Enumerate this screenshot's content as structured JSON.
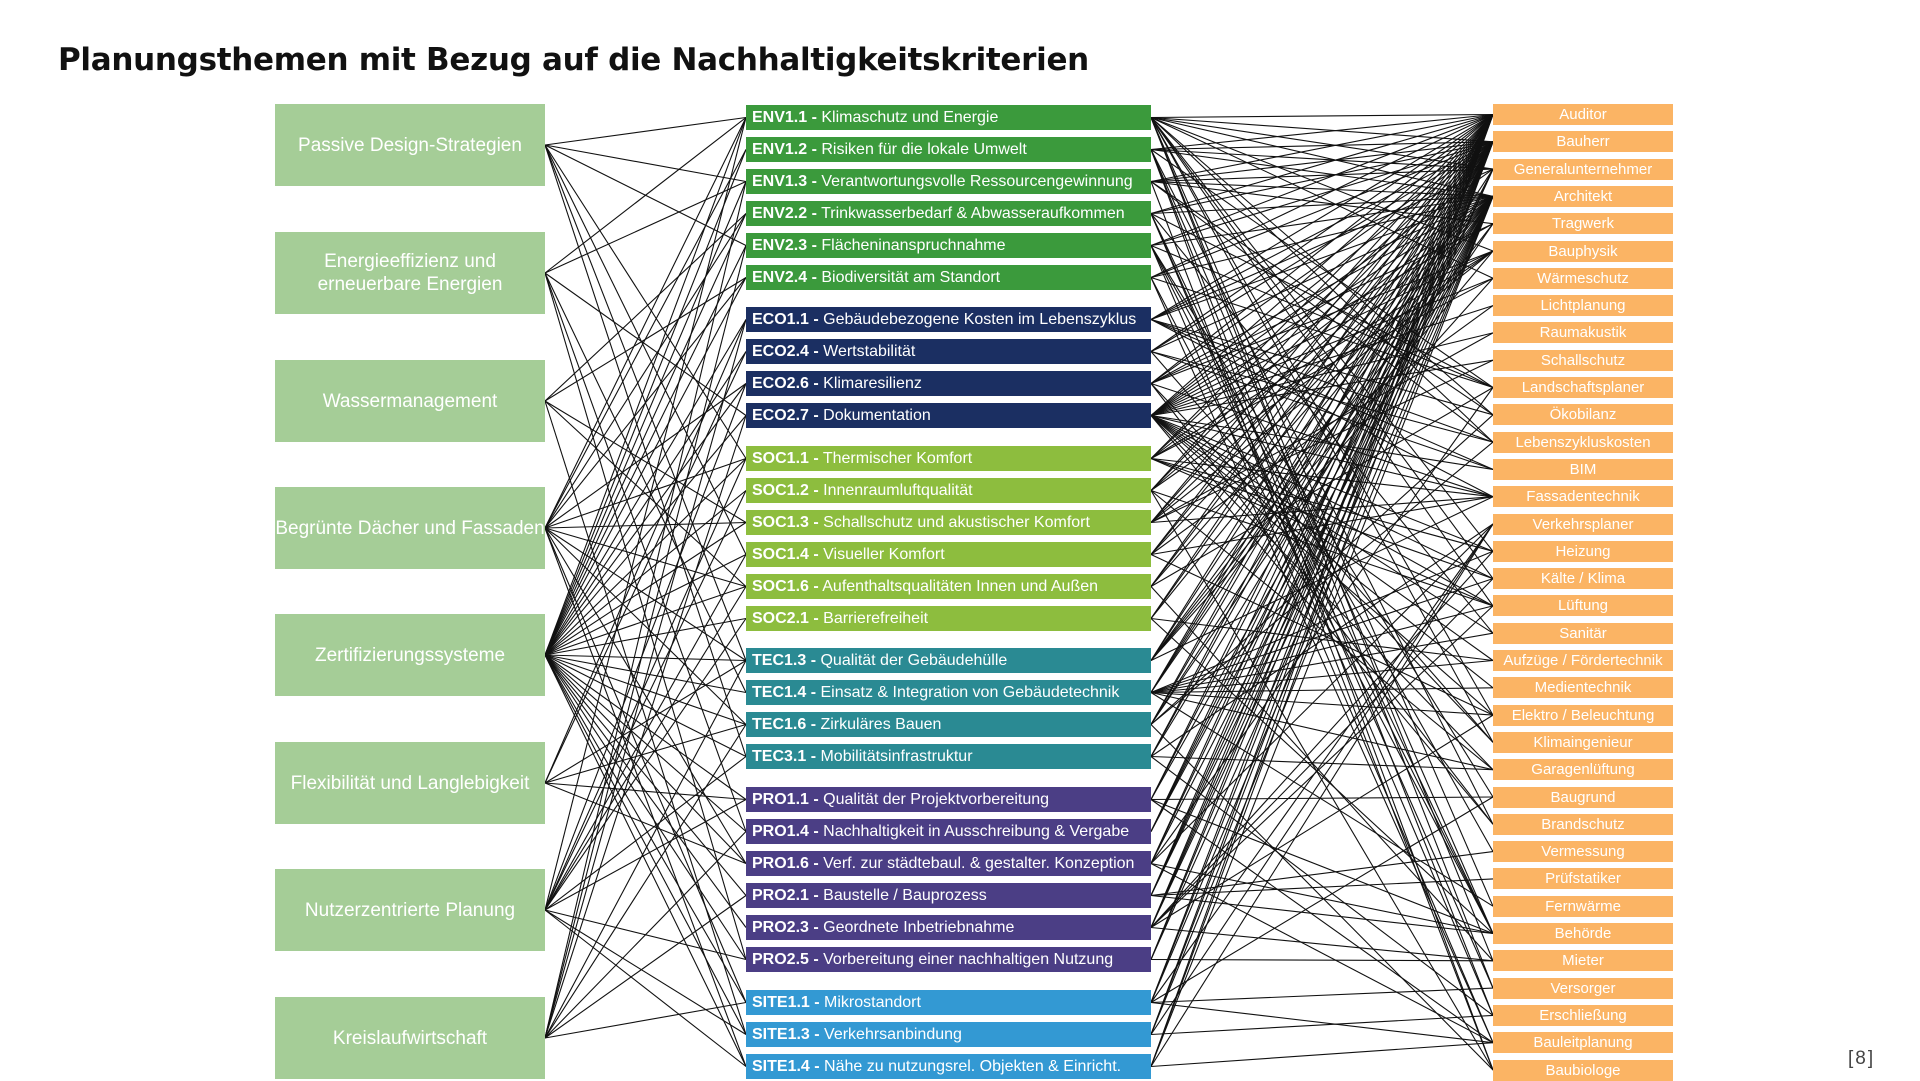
{
  "title": "Planungsthemen mit Bezug auf die Nachhaltigkeitskriterien",
  "page_number": "[8]",
  "colors": {
    "topic_box": "#a5cd97",
    "ENV": "#3b9a3c",
    "ECO": "#1b2f62",
    "SOC": "#8dbd3e",
    "TEC": "#2a8a93",
    "PRO": "#4b3e85",
    "SITE": "#3399d3",
    "role_box": "#fbb464",
    "link_line": "#111111"
  },
  "topics": [
    {
      "label": "Passive Design-Strategien"
    },
    {
      "label": "Energieeffizienz und erneuerbare Energien"
    },
    {
      "label": "Wassermanagement"
    },
    {
      "label": "Begrünte Dächer und Fassaden"
    },
    {
      "label": "Zertifizierungssysteme"
    },
    {
      "label": "Flexibilität und Langlebigkeit"
    },
    {
      "label": "Nutzerzentrierte Planung"
    },
    {
      "label": "Kreislaufwirtschaft"
    }
  ],
  "criteria": [
    {
      "code": "ENV1.1 -",
      "label": "Klimaschutz und Energie",
      "group": "ENV"
    },
    {
      "code": "ENV1.2 -",
      "label": "Risiken für die lokale Umwelt",
      "group": "ENV"
    },
    {
      "code": "ENV1.3 -",
      "label": "Verantwortungsvolle Ressourcengewinnung",
      "group": "ENV"
    },
    {
      "code": "ENV2.2 -",
      "label": "Trinkwasserbedarf & Abwasseraufkommen",
      "group": "ENV"
    },
    {
      "code": "ENV2.3 -",
      "label": "Flächeninanspruchnahme",
      "group": "ENV"
    },
    {
      "code": "ENV2.4 -",
      "label": "Biodiversität am Standort",
      "group": "ENV"
    },
    {
      "code": "ECO1.1 -",
      "label": "Gebäudebezogene Kosten im Lebenszyklus",
      "group": "ECO"
    },
    {
      "code": "ECO2.4 -",
      "label": "Wertstabilität",
      "group": "ECO"
    },
    {
      "code": "ECO2.6 -",
      "label": "Klimaresilienz",
      "group": "ECO"
    },
    {
      "code": "ECO2.7 -",
      "label": "Dokumentation",
      "group": "ECO"
    },
    {
      "code": "SOC1.1 -",
      "label": "Thermischer Komfort",
      "group": "SOC"
    },
    {
      "code": "SOC1.2 -",
      "label": "Innenraumluftqualität",
      "group": "SOC"
    },
    {
      "code": "SOC1.3 -",
      "label": "Schallschutz und akustischer Komfort",
      "group": "SOC"
    },
    {
      "code": "SOC1.4 -",
      "label": "Visueller Komfort",
      "group": "SOC"
    },
    {
      "code": "SOC1.6 -",
      "label": "Aufenthaltsqualitäten Innen und Außen",
      "group": "SOC"
    },
    {
      "code": "SOC2.1 -",
      "label": "Barrierefreiheit",
      "group": "SOC"
    },
    {
      "code": "TEC1.3 -",
      "label": "Qualität der Gebäudehülle",
      "group": "TEC"
    },
    {
      "code": "TEC1.4 -",
      "label": "Einsatz & Integration von Gebäudetechnik",
      "group": "TEC"
    },
    {
      "code": "TEC1.6 -",
      "label": "Zirkuläres Bauen",
      "group": "TEC"
    },
    {
      "code": "TEC3.1 -",
      "label": "Mobilitätsinfrastruktur",
      "group": "TEC"
    },
    {
      "code": "PRO1.1 -",
      "label": "Qualität der Projektvorbereitung",
      "group": "PRO"
    },
    {
      "code": "PRO1.4 -",
      "label": "Nachhaltigkeit in Ausschreibung & Vergabe",
      "group": "PRO"
    },
    {
      "code": "PRO1.6 -",
      "label": "Verf. zur städtebaul. & gestalter. Konzeption",
      "group": "PRO"
    },
    {
      "code": "PRO2.1 -",
      "label": "Baustelle / Bauprozess",
      "group": "PRO"
    },
    {
      "code": "PRO2.3 -",
      "label": "Geordnete Inbetriebnahme",
      "group": "PRO"
    },
    {
      "code": "PRO2.5 -",
      "label": "Vorbereitung einer nachhaltigen Nutzung",
      "group": "PRO"
    },
    {
      "code": "SITE1.1 -",
      "label": "Mikrostandort",
      "group": "SITE"
    },
    {
      "code": "SITE1.3 -",
      "label": "Verkehrsanbindung",
      "group": "SITE"
    },
    {
      "code": "SITE1.4 -",
      "label": "Nähe zu nutzungsrel. Objekten & Einricht.",
      "group": "SITE"
    }
  ],
  "roles": [
    {
      "label": "Auditor"
    },
    {
      "label": "Bauherr"
    },
    {
      "label": "Generalunternehmer"
    },
    {
      "label": "Architekt"
    },
    {
      "label": "Tragwerk"
    },
    {
      "label": "Bauphysik"
    },
    {
      "label": "Wärmeschutz"
    },
    {
      "label": "Lichtplanung"
    },
    {
      "label": "Raumakustik"
    },
    {
      "label": "Schallschutz"
    },
    {
      "label": "Landschaftsplaner"
    },
    {
      "label": "Ökobilanz"
    },
    {
      "label": "Lebenszykluskosten"
    },
    {
      "label": "BIM"
    },
    {
      "label": "Fassadentechnik"
    },
    {
      "label": "Verkehrsplaner"
    },
    {
      "label": "Heizung"
    },
    {
      "label": "Kälte / Klima"
    },
    {
      "label": "Lüftung"
    },
    {
      "label": "Sanitär"
    },
    {
      "label": "Aufzüge / Fördertechnik"
    },
    {
      "label": "Medientechnik"
    },
    {
      "label": "Elektro / Beleuchtung"
    },
    {
      "label": "Klimaingenieur"
    },
    {
      "label": "Garagenlüftung"
    },
    {
      "label": "Baugrund"
    },
    {
      "label": "Brandschutz"
    },
    {
      "label": "Vermessung"
    },
    {
      "label": "Prüfstatiker"
    },
    {
      "label": "Fernwärme"
    },
    {
      "label": "Behörde"
    },
    {
      "label": "Mieter"
    },
    {
      "label": "Versorger"
    },
    {
      "label": "Erschließung"
    },
    {
      "label": "Bauleitplanung"
    },
    {
      "label": "Baubiologe"
    }
  ],
  "topic_links": [
    [
      0,
      [
        0,
        2,
        4,
        10,
        13,
        16,
        19
      ]
    ],
    [
      1,
      [
        0,
        2,
        9,
        17,
        21,
        25
      ]
    ],
    [
      2,
      [
        3,
        5,
        12,
        14,
        27
      ]
    ],
    [
      3,
      [
        0,
        1,
        3,
        5,
        8,
        10,
        12,
        14,
        16,
        18,
        22,
        26,
        28
      ]
    ],
    [
      4,
      [
        0,
        1,
        2,
        3,
        4,
        5,
        6,
        7,
        8,
        9,
        10,
        11,
        12,
        13,
        14,
        15,
        16,
        17,
        18,
        19,
        20,
        21,
        22,
        23,
        24,
        25,
        26,
        27,
        28
      ]
    ],
    [
      5,
      [
        6,
        7,
        16,
        18,
        20,
        22
      ]
    ],
    [
      6,
      [
        0,
        8,
        10,
        11,
        13,
        14,
        15,
        19,
        20,
        25,
        27,
        28
      ]
    ],
    [
      7,
      [
        2,
        4,
        6,
        9,
        16,
        18,
        21,
        23,
        26
      ]
    ]
  ],
  "role_links": [
    [
      0,
      [
        0,
        1,
        2,
        3,
        5,
        6,
        11,
        12,
        16,
        17,
        18,
        22,
        23,
        29,
        31,
        32
      ]
    ],
    [
      1,
      [
        0,
        1,
        2,
        3,
        10,
        26,
        30,
        33,
        35
      ]
    ],
    [
      2,
      [
        0,
        1,
        2,
        3,
        4,
        11,
        12,
        35
      ]
    ],
    [
      3,
      [
        0,
        1,
        3,
        10,
        19,
        30,
        32,
        33
      ]
    ],
    [
      4,
      [
        0,
        1,
        3,
        10,
        25,
        27,
        30,
        34
      ]
    ],
    [
      5,
      [
        0,
        1,
        3,
        10,
        30,
        34
      ]
    ],
    [
      6,
      [
        0,
        1,
        2,
        3,
        11,
        12,
        13,
        14
      ]
    ],
    [
      7,
      [
        0,
        1,
        3,
        12,
        13,
        23
      ]
    ],
    [
      8,
      [
        0,
        1,
        3,
        4,
        5,
        14,
        23,
        26
      ]
    ],
    [
      9,
      [
        0,
        1,
        2,
        3,
        4,
        5,
        6,
        7,
        8,
        9,
        13,
        14,
        16,
        17,
        18,
        19,
        20,
        21,
        22,
        24,
        26
      ]
    ],
    [
      10,
      [
        0,
        1,
        3,
        5,
        6,
        14,
        16,
        17,
        18
      ]
    ],
    [
      11,
      [
        0,
        1,
        3,
        5,
        18,
        24,
        35
      ]
    ],
    [
      12,
      [
        0,
        1,
        3,
        5,
        8,
        9,
        14
      ]
    ],
    [
      13,
      [
        0,
        1,
        3,
        7,
        14,
        22
      ]
    ],
    [
      14,
      [
        0,
        1,
        3,
        10,
        31
      ]
    ],
    [
      15,
      [
        0,
        1,
        3,
        20,
        30
      ]
    ],
    [
      16,
      [
        0,
        1,
        3,
        4,
        5,
        6,
        14
      ]
    ],
    [
      17,
      [
        0,
        1,
        2,
        3,
        16,
        17,
        18,
        19,
        20,
        21,
        22,
        24,
        29
      ]
    ],
    [
      18,
      [
        0,
        1,
        3,
        4,
        11,
        12,
        35
      ]
    ],
    [
      19,
      [
        0,
        1,
        3,
        15,
        24,
        33
      ]
    ],
    [
      20,
      [
        0,
        1,
        3,
        25,
        30,
        34
      ]
    ],
    [
      21,
      [
        0,
        1,
        2,
        3
      ]
    ],
    [
      22,
      [
        0,
        1,
        3,
        10,
        15,
        30,
        34
      ]
    ],
    [
      23,
      [
        0,
        1,
        2,
        3,
        27,
        28,
        30
      ]
    ],
    [
      24,
      [
        0,
        1,
        2,
        3,
        16,
        17,
        18,
        22,
        31
      ]
    ],
    [
      25,
      [
        0,
        1,
        3,
        31
      ]
    ],
    [
      26,
      [
        0,
        1,
        3,
        15,
        25,
        32,
        34
      ]
    ],
    [
      27,
      [
        0,
        1,
        3,
        15,
        33
      ]
    ],
    [
      28,
      [
        0,
        1,
        3,
        15,
        34
      ]
    ]
  ]
}
